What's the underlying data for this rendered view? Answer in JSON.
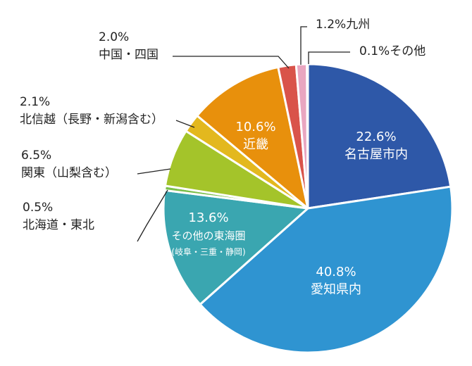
{
  "chart_data": {
    "type": "pie",
    "title": "",
    "unit": "%",
    "start_angle_deg": 0,
    "direction": "clockwise",
    "slices": [
      {
        "label": "名古屋市内",
        "value": 22.6,
        "value_label": "22.6%",
        "color": "#2e58a8",
        "label_placement": "inside",
        "text_color": "#ffffff"
      },
      {
        "label": "愛知県内",
        "value": 40.8,
        "value_label": "40.8%",
        "color": "#2f94d1",
        "label_placement": "inside",
        "text_color": "#ffffff"
      },
      {
        "label": "その他の東海圏",
        "sublabel": "(岐阜・三重・静岡)",
        "value": 13.6,
        "value_label": "13.6%",
        "color": "#3aa6b0",
        "label_placement": "inside",
        "text_color": "#ffffff"
      },
      {
        "label": "北海道・東北",
        "value": 0.5,
        "value_label": "0.5%",
        "color": "#7abf4a",
        "label_placement": "outside",
        "text_color": "#222222"
      },
      {
        "label": "関東（山梨含む）",
        "value": 6.5,
        "value_label": "6.5%",
        "color": "#a4c42a",
        "label_placement": "outside",
        "text_color": "#222222"
      },
      {
        "label": "北信越（長野・新潟含む）",
        "value": 2.1,
        "value_label": "2.1%",
        "color": "#e3b81e",
        "label_placement": "outside",
        "text_color": "#222222"
      },
      {
        "label": "近畿",
        "value": 10.6,
        "value_label": "10.6%",
        "color": "#e8900c",
        "label_placement": "inside",
        "text_color": "#ffffff"
      },
      {
        "label": "中国・四国",
        "value": 2.0,
        "value_label": "2.0%",
        "color": "#d9534a",
        "label_placement": "outside",
        "text_color": "#222222"
      },
      {
        "label": "九州",
        "value": 1.2,
        "value_label": "1.2%",
        "color": "#e9a6c0",
        "label_placement": "outside",
        "text_color": "#222222"
      },
      {
        "label": "その他",
        "value": 0.1,
        "value_label": "0.1%",
        "color": "#8a8fc0",
        "label_placement": "outside",
        "text_color": "#222222"
      }
    ]
  }
}
